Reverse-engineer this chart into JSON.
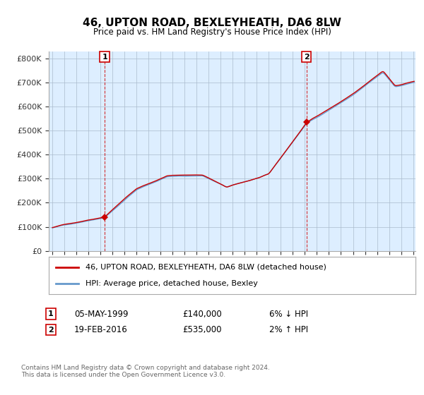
{
  "title": "46, UPTON ROAD, BEXLEYHEATH, DA6 8LW",
  "subtitle": "Price paid vs. HM Land Registry's House Price Index (HPI)",
  "ylim": [
    0,
    830000
  ],
  "yticks": [
    0,
    100000,
    200000,
    300000,
    400000,
    500000,
    600000,
    700000,
    800000
  ],
  "ytick_labels": [
    "£0",
    "£100K",
    "£200K",
    "£300K",
    "£400K",
    "£500K",
    "£600K",
    "£700K",
    "£800K"
  ],
  "background_color": "#ffffff",
  "plot_bg_color": "#ddeeff",
  "grid_color": "#aabbcc",
  "purchase1": {
    "date_str": "05-MAY-1999",
    "year": 1999.35,
    "price": 140000,
    "label": "1",
    "hpi_diff": "6% ↓ HPI"
  },
  "purchase2": {
    "date_str": "19-FEB-2016",
    "year": 2016.13,
    "price": 535000,
    "label": "2",
    "hpi_diff": "2% ↑ HPI"
  },
  "line_color_property": "#cc0000",
  "line_color_hpi": "#6699cc",
  "legend_label_property": "46, UPTON ROAD, BEXLEYHEATH, DA6 8LW (detached house)",
  "legend_label_hpi": "HPI: Average price, detached house, Bexley",
  "footer": "Contains HM Land Registry data © Crown copyright and database right 2024.\nThis data is licensed under the Open Government Licence v3.0.",
  "annotation_box_color": "#cc0000",
  "xlim_left": 1995.0,
  "xlim_right": 2025.2
}
